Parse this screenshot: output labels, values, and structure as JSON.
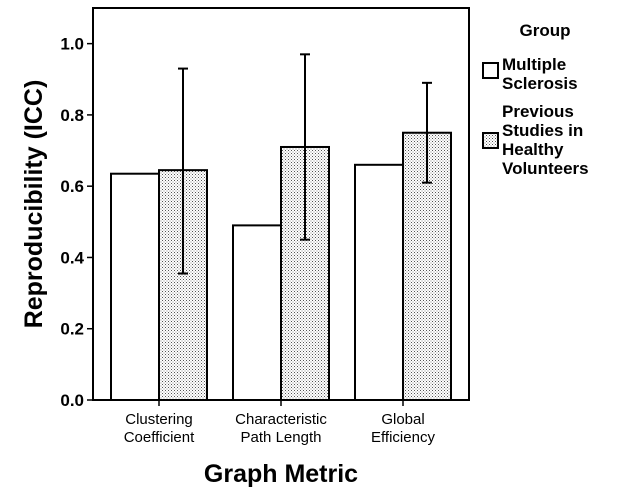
{
  "chart_data": {
    "type": "bar",
    "xlabel": "Graph Metric",
    "ylabel": "Reproducibility (ICC)",
    "ylim": [
      0,
      1.1
    ],
    "yticks": [
      0.0,
      0.2,
      0.4,
      0.6,
      0.8,
      1.0
    ],
    "ytick_labels": [
      "0.0",
      "0.2",
      "0.4",
      "0.6",
      "0.8",
      "1.0"
    ],
    "grid": false,
    "legend_position": "right",
    "legend_title": "Group",
    "categories": [
      [
        "Clustering",
        "Coefficient"
      ],
      [
        "Characteristic",
        "Path Length"
      ],
      [
        "Global",
        "Efficiency"
      ]
    ],
    "series": [
      {
        "name": [
          "Multiple",
          "Sclerosis"
        ],
        "fill": "white",
        "values": [
          0.635,
          0.49,
          0.66
        ],
        "error_low": [
          null,
          null,
          null
        ],
        "error_high": [
          null,
          null,
          null
        ]
      },
      {
        "name": [
          "Previous",
          "Studies in",
          "Healthy",
          "Volunteers"
        ],
        "fill": "dotted",
        "values": [
          0.645,
          0.71,
          0.75
        ],
        "error_low": [
          0.355,
          0.45,
          0.61
        ],
        "error_high": [
          0.93,
          0.97,
          0.89
        ]
      }
    ],
    "colors": {
      "stroke": "#000000",
      "background": "#ffffff",
      "dot": "#555555"
    }
  }
}
